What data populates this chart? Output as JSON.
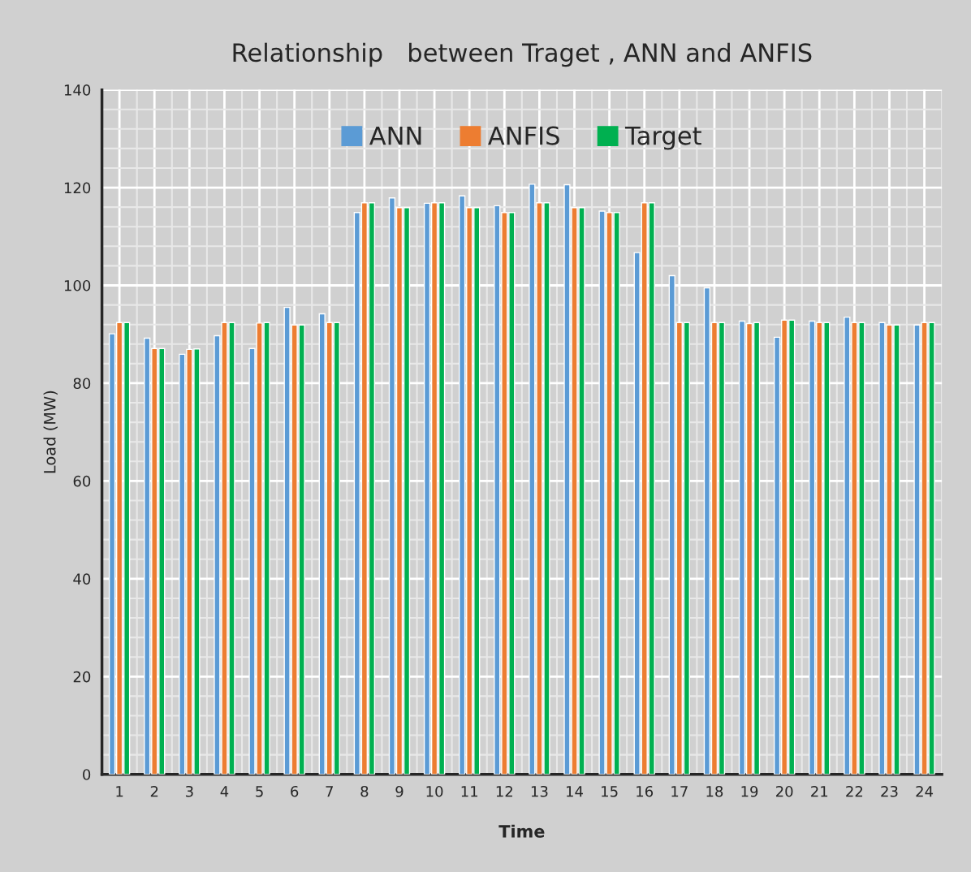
{
  "chart_data": {
    "type": "bar",
    "title": "Relationship   between Traget , ANN and ANFIS",
    "xlabel": "Time",
    "ylabel": "Load (MW)",
    "categories": [
      "1",
      "2",
      "3",
      "4",
      "5",
      "6",
      "7",
      "8",
      "9",
      "10",
      "11",
      "12",
      "13",
      "14",
      "15",
      "16",
      "17",
      "18",
      "19",
      "20",
      "21",
      "22",
      "23",
      "24"
    ],
    "series": [
      {
        "name": "ANN",
        "color": "#5b9bd5",
        "values": [
          90.1,
          89.2,
          85.9,
          89.7,
          87.1,
          95.5,
          94.2,
          114.9,
          117.9,
          116.8,
          118.3,
          116.3,
          120.7,
          120.6,
          115.2,
          106.7,
          102,
          99.5,
          92.7,
          89.4,
          92.7,
          93.5,
          92.4,
          91.9
        ]
      },
      {
        "name": "ANFIS",
        "color": "#ed7d31",
        "values": [
          92.4,
          87.1,
          86.9,
          92.4,
          92.3,
          91.9,
          92.4,
          116.9,
          115.9,
          116.9,
          115.9,
          114.9,
          116.9,
          115.9,
          114.9,
          116.9,
          92.4,
          92.4,
          92.2,
          92.9,
          92.4,
          92.4,
          91.9,
          92.4
        ]
      },
      {
        "name": "Target",
        "color": "#00b050",
        "values": [
          92.4,
          87.1,
          87,
          92.4,
          92.4,
          91.9,
          92.4,
          116.9,
          115.9,
          116.9,
          115.9,
          114.9,
          116.9,
          115.9,
          114.9,
          116.9,
          92.4,
          92.4,
          92.4,
          92.9,
          92.4,
          92.4,
          91.9,
          92.4
        ]
      }
    ],
    "ylim": [
      0,
      140
    ],
    "yticks": [
      0,
      20,
      40,
      60,
      80,
      100,
      120,
      140
    ],
    "grid": true,
    "legend": "top"
  }
}
